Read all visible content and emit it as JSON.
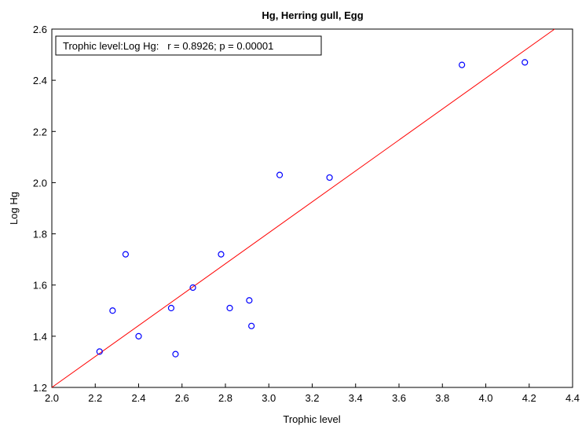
{
  "chart_data": {
    "type": "scatter",
    "title": "Hg, Herring gull, Egg",
    "xlabel": "Trophic level",
    "ylabel": "Log Hg",
    "xlim": [
      2.0,
      4.4
    ],
    "ylim": [
      1.2,
      2.6
    ],
    "xticks": [
      "2.0",
      "2.2",
      "2.4",
      "2.6",
      "2.8",
      "3.0",
      "3.2",
      "3.4",
      "3.6",
      "3.8",
      "4.0",
      "4.2",
      "4.4"
    ],
    "yticks": [
      "1.2",
      "1.4",
      "1.6",
      "1.8",
      "2.0",
      "2.2",
      "2.4",
      "2.6"
    ],
    "grid": false,
    "annotation": "Trophic level:Log Hg:   r = 0.8926; p = 0.00001",
    "points": [
      {
        "x": 2.22,
        "y": 1.34
      },
      {
        "x": 2.28,
        "y": 1.5
      },
      {
        "x": 2.34,
        "y": 1.72
      },
      {
        "x": 2.4,
        "y": 1.4
      },
      {
        "x": 2.55,
        "y": 1.51
      },
      {
        "x": 2.57,
        "y": 1.33
      },
      {
        "x": 2.65,
        "y": 1.59
      },
      {
        "x": 2.78,
        "y": 1.72
      },
      {
        "x": 2.82,
        "y": 1.51
      },
      {
        "x": 2.91,
        "y": 1.54
      },
      {
        "x": 2.92,
        "y": 1.44
      },
      {
        "x": 3.05,
        "y": 2.03
      },
      {
        "x": 3.28,
        "y": 2.02
      },
      {
        "x": 3.89,
        "y": 2.46
      },
      {
        "x": 4.18,
        "y": 2.47
      }
    ],
    "regression_line": {
      "x": [
        2.0,
        4.4
      ],
      "y": [
        1.2,
        2.65
      ]
    },
    "colors": {
      "points": "#0000ff",
      "line": "#ff0000",
      "axes": "#000000"
    }
  }
}
